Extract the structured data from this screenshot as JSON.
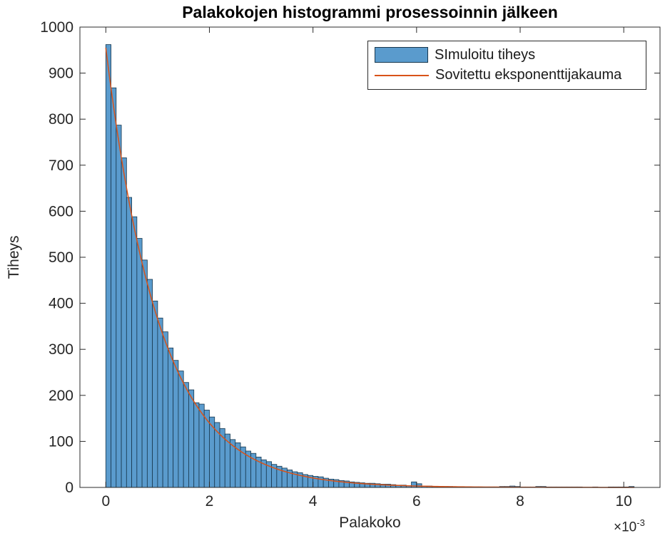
{
  "chart_data": {
    "type": "bar",
    "subtype": "histogram-with-fitted-curve",
    "title": "Palakokojen histogrammi prosessoinnin jälkeen",
    "xlabel": "Palakoko",
    "ylabel": "Tiheys",
    "x_axis": {
      "ticks": [
        "0",
        "2",
        "4",
        "6",
        "8",
        "10"
      ],
      "tick_values": [
        0,
        2,
        4,
        6,
        8,
        10
      ],
      "multiplier_base": "×10",
      "multiplier_exponent": "-3",
      "units_multiplier": 0.001
    },
    "y_axis": {
      "ticks": [
        "0",
        "100",
        "200",
        "300",
        "400",
        "500",
        "600",
        "700",
        "800",
        "900",
        "1000"
      ],
      "tick_values": [
        0,
        100,
        200,
        300,
        400,
        500,
        600,
        700,
        800,
        900,
        1000
      ]
    },
    "xlim": [
      -0.5,
      10.7
    ],
    "ylim": [
      0,
      1000
    ],
    "grid": false,
    "legend_position": "northeast",
    "legend": [
      {
        "label": "SImuloitu tiheys",
        "swatch": "patch"
      },
      {
        "label": "Sovitettu eksponenttijakauma",
        "swatch": "line"
      }
    ],
    "histogram": {
      "bin_start": 0,
      "bin_width": 0.1,
      "bin_counts": [
        962,
        868,
        787,
        716,
        630,
        588,
        541,
        494,
        452,
        405,
        368,
        338,
        303,
        276,
        253,
        228,
        212,
        184,
        181,
        168,
        153,
        141,
        128,
        116,
        104,
        97,
        88,
        79,
        74,
        66,
        60,
        56,
        50,
        46,
        42,
        38,
        34,
        32,
        28,
        26,
        24,
        23,
        20,
        18,
        17,
        15,
        14,
        12,
        11,
        10,
        9,
        9,
        8,
        7,
        7,
        6,
        5,
        5,
        4,
        12,
        8,
        3,
        3,
        2,
        2,
        2,
        2,
        1,
        1,
        1,
        1,
        1,
        1,
        1,
        1,
        1,
        2,
        2,
        3,
        2,
        1,
        1,
        1,
        2,
        2,
        1,
        1,
        1,
        1,
        1,
        1,
        1,
        0,
        0,
        1,
        0,
        0,
        1,
        1,
        1,
        1,
        2
      ]
    },
    "fit_curve": {
      "name": "Sovitettu eksponenttijakauma",
      "model": "exponential",
      "y0": 955,
      "mean": 1.042,
      "x_range": [
        0,
        10.2
      ]
    },
    "colors": {
      "bar_fill": "#5a9bcd",
      "bar_edge": "#17374e",
      "fit_line": "#d95319",
      "axis": "#2b2b2b",
      "text": "#262626"
    }
  }
}
